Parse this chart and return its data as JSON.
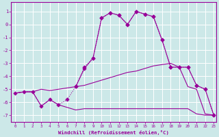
{
  "xlabel": "Windchill (Refroidissement éolien,°C)",
  "bg_color": "#cce8e8",
  "grid_color": "#ffffff",
  "line_color": "#990099",
  "xlim": [
    -0.5,
    23.3
  ],
  "ylim": [
    -7.5,
    1.7
  ],
  "yticks": [
    1,
    0,
    -1,
    -2,
    -3,
    -4,
    -5,
    -6,
    -7
  ],
  "xticks": [
    0,
    1,
    2,
    3,
    4,
    5,
    6,
    7,
    8,
    9,
    10,
    11,
    12,
    13,
    14,
    15,
    16,
    17,
    18,
    19,
    20,
    21,
    22,
    23
  ],
  "series": [
    {
      "x": [
        0,
        1,
        2,
        3,
        4,
        5,
        6,
        7,
        8,
        9,
        10,
        11,
        12,
        13,
        14,
        15,
        16,
        17,
        18,
        19,
        20,
        21,
        22,
        23
      ],
      "y": [
        -5.3,
        -5.2,
        -5.2,
        -6.3,
        -5.8,
        -6.2,
        -6.4,
        -6.6,
        -6.5,
        -6.5,
        -6.5,
        -6.5,
        -6.5,
        -6.5,
        -6.5,
        -6.5,
        -6.5,
        -6.5,
        -6.5,
        -6.5,
        -6.5,
        -6.9,
        -7.0,
        -7.0
      ],
      "marker": null,
      "linestyle": "-"
    },
    {
      "x": [
        0,
        1,
        2,
        3,
        4,
        5,
        6,
        7,
        8,
        9,
        10,
        11,
        12,
        13,
        14,
        15,
        16,
        17,
        18,
        19,
        20,
        21,
        22,
        23
      ],
      "y": [
        -5.3,
        -5.2,
        -5.2,
        -5.0,
        -5.1,
        -5.0,
        -4.9,
        -4.8,
        -4.7,
        -4.5,
        -4.3,
        -4.1,
        -3.9,
        -3.7,
        -3.6,
        -3.4,
        -3.2,
        -3.1,
        -3.0,
        -3.3,
        -4.8,
        -5.0,
        -6.9,
        -7.0
      ],
      "marker": null,
      "linestyle": "-"
    },
    {
      "x": [
        0,
        1,
        2,
        3,
        4,
        5,
        6,
        7,
        8,
        9,
        10,
        11,
        12,
        13,
        14,
        15,
        16,
        17,
        18,
        19,
        20,
        21,
        22,
        23
      ],
      "y": [
        -5.3,
        -5.2,
        -5.2,
        -6.3,
        -5.8,
        -6.2,
        -5.8,
        -4.8,
        -3.3,
        -2.6,
        0.5,
        0.9,
        0.7,
        0.0,
        1.0,
        0.8,
        0.6,
        -1.2,
        -3.3,
        -3.3,
        -3.3,
        -4.7,
        -5.0,
        -7.0
      ],
      "marker": "D",
      "linestyle": ":"
    },
    {
      "x": [
        7,
        8,
        9,
        10,
        11,
        12,
        13,
        14,
        15,
        16,
        17,
        18,
        19,
        20,
        21,
        22,
        23
      ],
      "y": [
        -4.8,
        -3.4,
        -2.6,
        0.5,
        0.9,
        0.7,
        0.0,
        1.0,
        0.8,
        0.6,
        -1.2,
        -3.3,
        -3.3,
        -3.3,
        -4.7,
        -5.0,
        -7.0
      ],
      "marker": "D",
      "linestyle": "-"
    }
  ]
}
